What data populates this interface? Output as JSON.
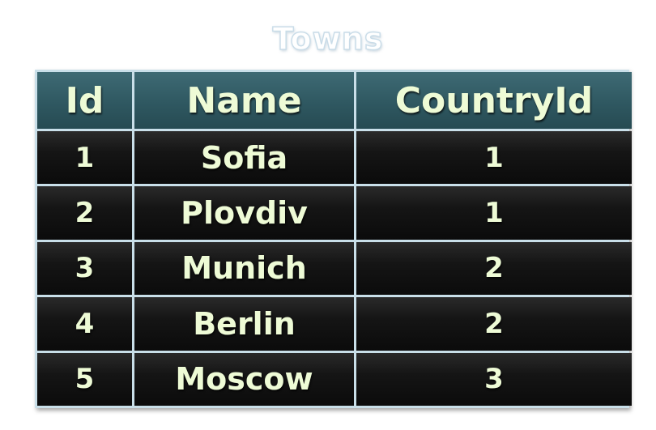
{
  "title": "Towns",
  "table": {
    "columns": [
      "Id",
      "Name",
      "CountryId"
    ],
    "rows": [
      [
        "1",
        "Sofia",
        "1"
      ],
      [
        "2",
        "Plovdiv",
        "1"
      ],
      [
        "3",
        "Munich",
        "2"
      ],
      [
        "4",
        "Berlin",
        "2"
      ],
      [
        "5",
        "Moscow",
        "3"
      ]
    ]
  },
  "colors": {
    "header_background": "#2f5861",
    "row_background": "#151515",
    "text": "#eefbd6",
    "grid_lines": "#c9dfe9"
  }
}
